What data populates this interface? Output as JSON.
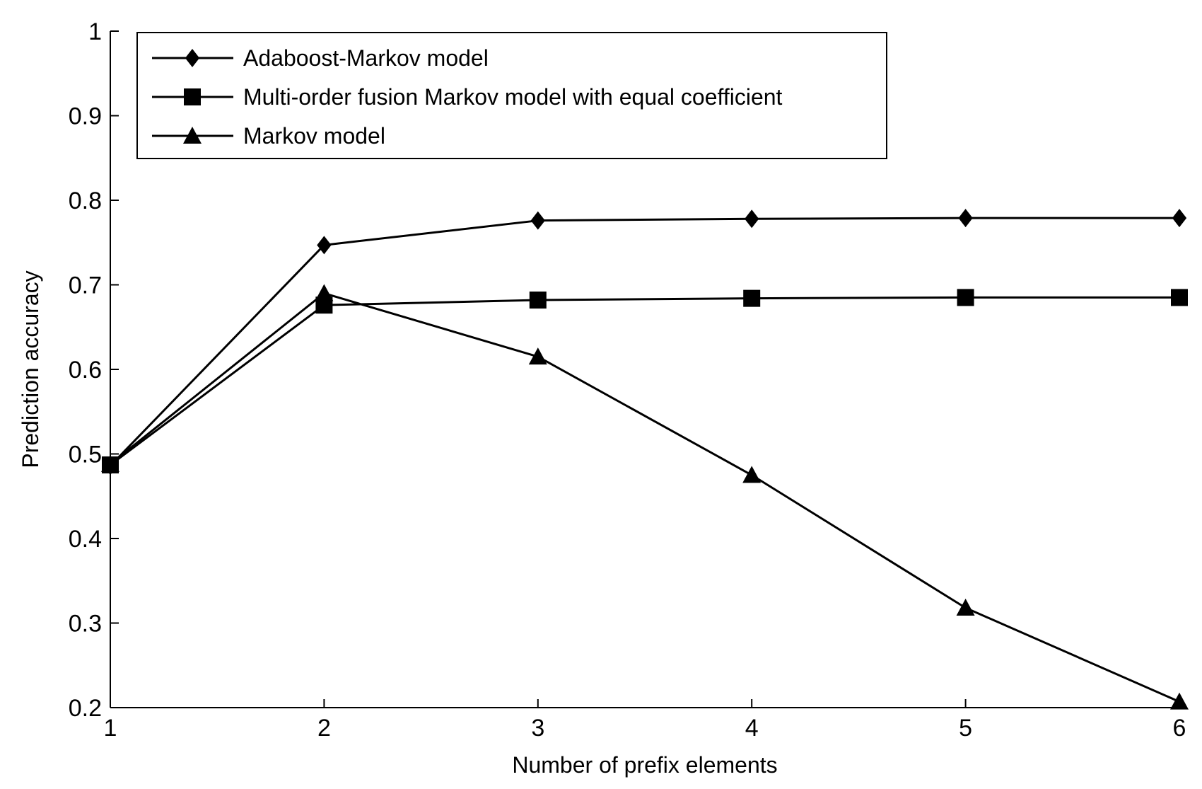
{
  "chart_data": {
    "type": "line",
    "xlabel": "Number of prefix elements",
    "ylabel": "Prediction accuracy",
    "x": [
      1,
      2,
      3,
      4,
      5,
      6
    ],
    "xlim": [
      1,
      6
    ],
    "ylim": [
      0.2,
      1
    ],
    "xticks": [
      "1",
      "2",
      "3",
      "4",
      "5",
      "6"
    ],
    "yticks": [
      "0.2",
      "0.3",
      "0.4",
      "0.5",
      "0.6",
      "0.7",
      "0.8",
      "0.9",
      "1"
    ],
    "grid": false,
    "legend_position": "top-left",
    "series": [
      {
        "name": "Adaboost-Markov model",
        "marker": "diamond",
        "values": [
          0.486,
          0.747,
          0.776,
          0.778,
          0.779,
          0.779
        ]
      },
      {
        "name": "Multi-order fusion Markov model with equal coefficient",
        "marker": "square",
        "values": [
          0.487,
          0.676,
          0.682,
          0.684,
          0.685,
          0.685
        ]
      },
      {
        "name": "Markov model",
        "marker": "triangle",
        "values": [
          0.488,
          0.69,
          0.615,
          0.475,
          0.318,
          0.207
        ]
      }
    ],
    "line_color": "#000000"
  }
}
